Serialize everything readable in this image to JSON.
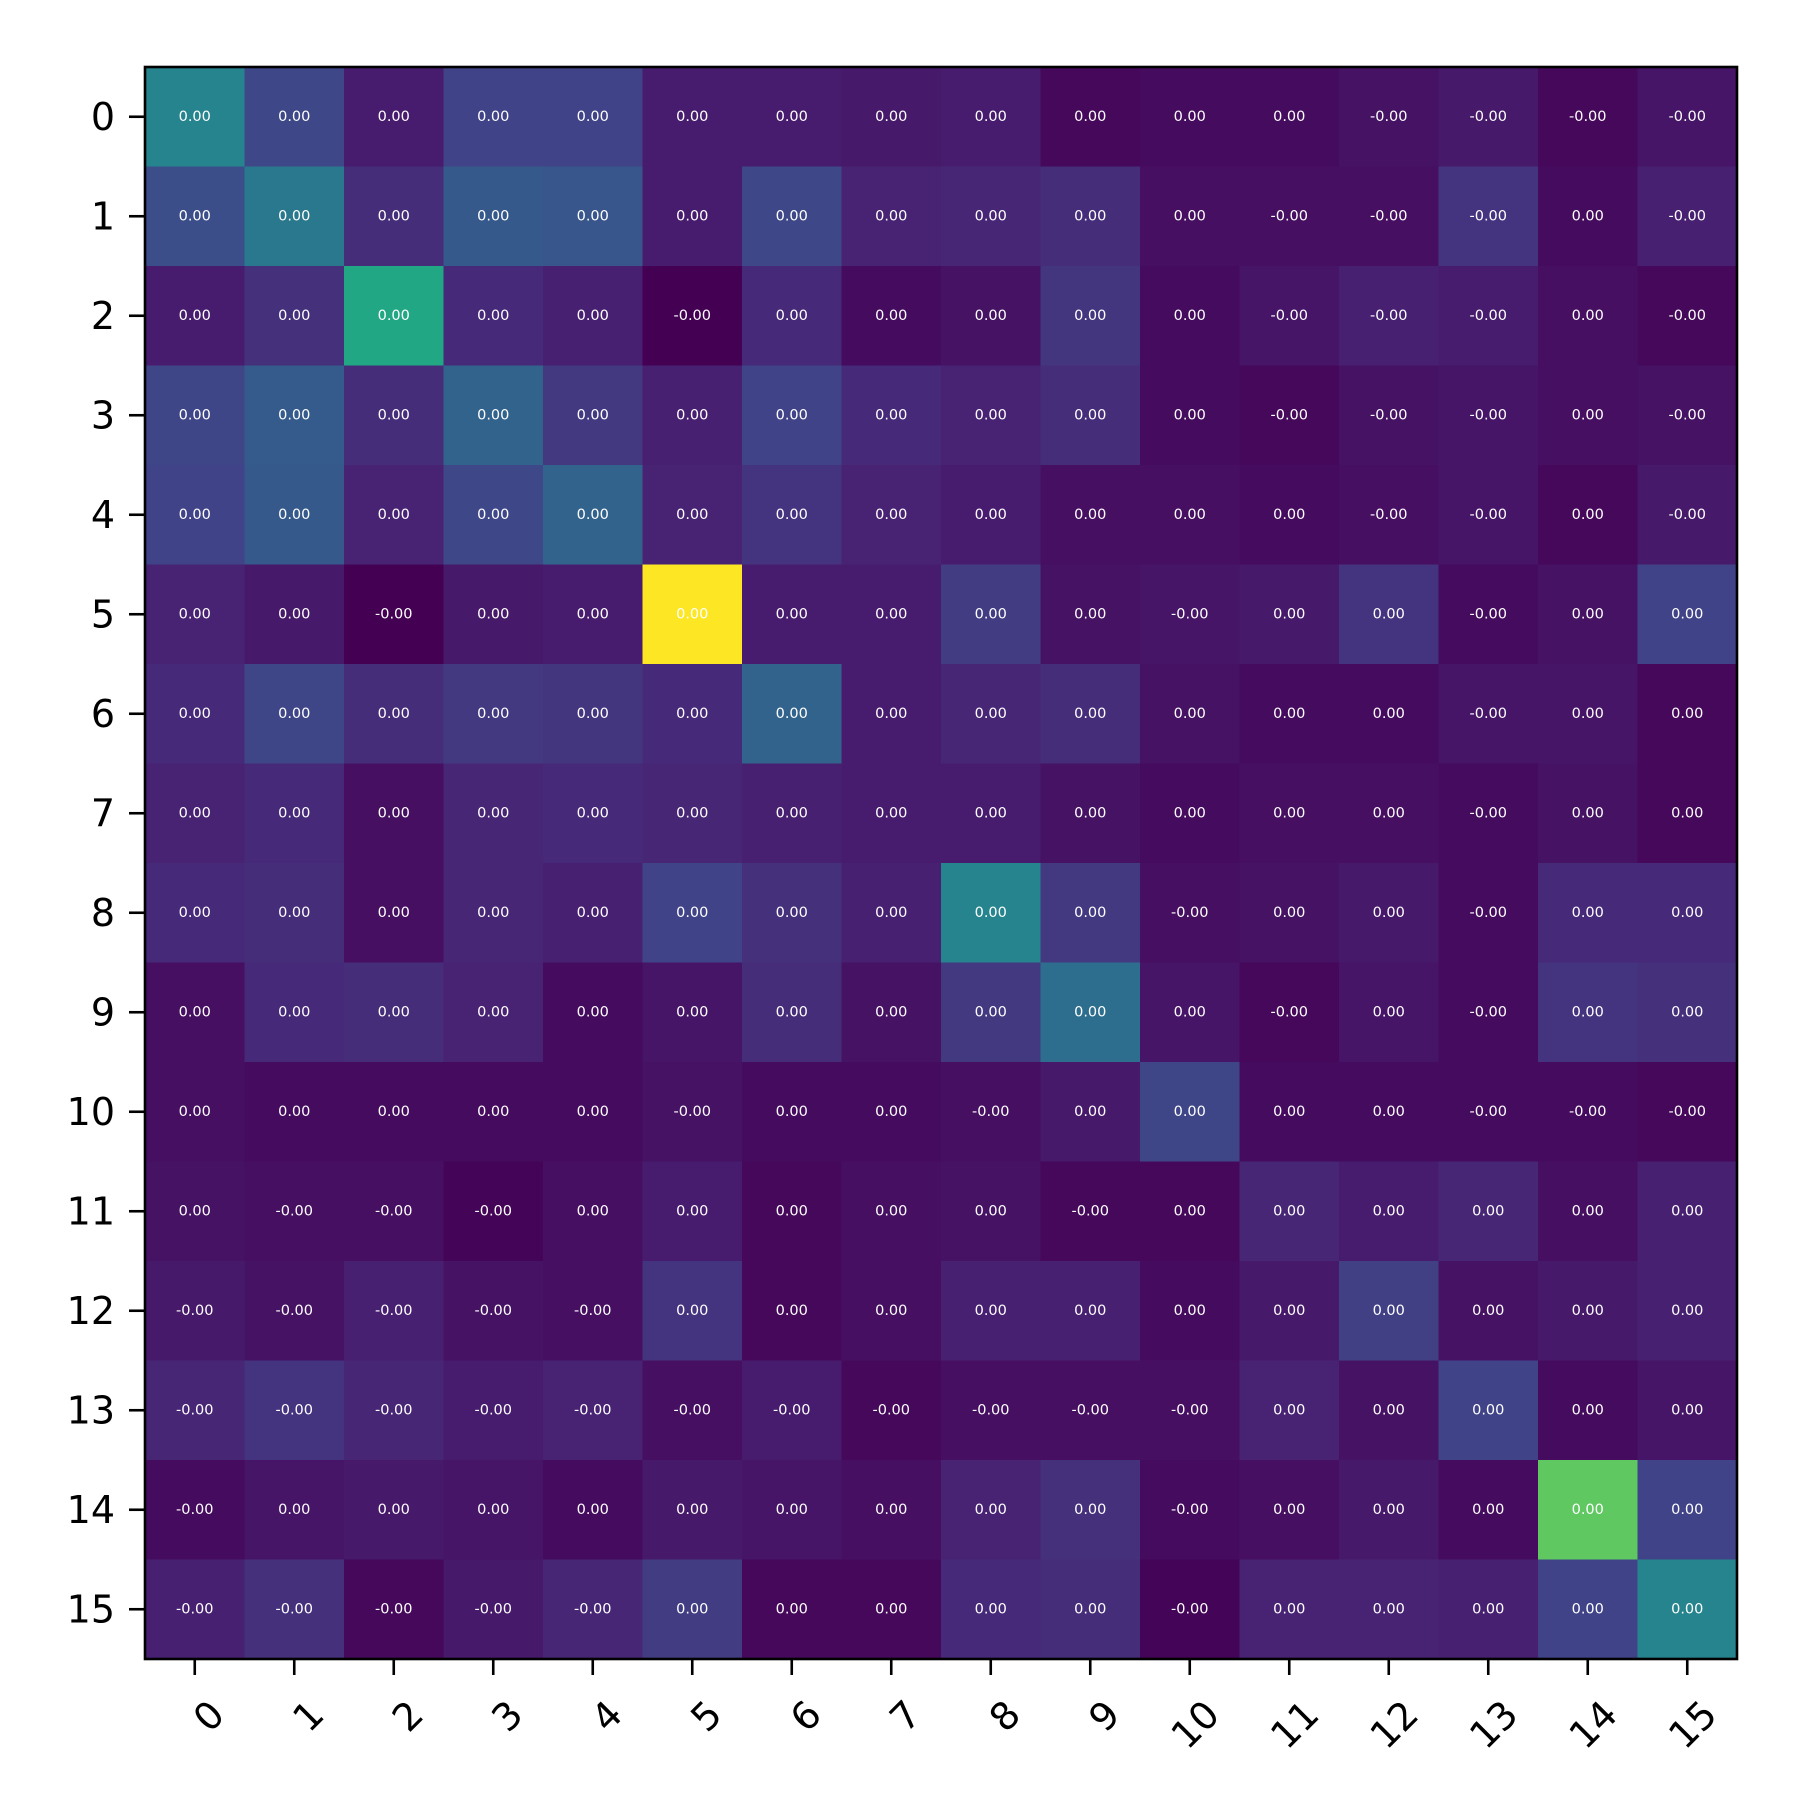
{
  "chart_data": {
    "type": "heatmap",
    "title": "",
    "xlabel": "",
    "ylabel": "",
    "x_tick_labels": [
      "0",
      "1",
      "2",
      "3",
      "4",
      "5",
      "6",
      "7",
      "8",
      "9",
      "10",
      "11",
      "12",
      "13",
      "14",
      "15"
    ],
    "y_tick_labels": [
      "0",
      "1",
      "2",
      "3",
      "4",
      "5",
      "6",
      "7",
      "8",
      "9",
      "10",
      "11",
      "12",
      "13",
      "14",
      "15"
    ],
    "colormap": "viridis",
    "grid": false,
    "legend": "none",
    "intensity": [
      [
        0.45,
        0.22,
        0.08,
        0.2,
        0.2,
        0.08,
        0.08,
        0.07,
        0.08,
        0.02,
        0.03,
        0.03,
        0.05,
        0.07,
        0.02,
        0.06
      ],
      [
        0.24,
        0.4,
        0.13,
        0.28,
        0.27,
        0.08,
        0.22,
        0.1,
        0.11,
        0.13,
        0.04,
        0.04,
        0.04,
        0.15,
        0.03,
        0.09
      ],
      [
        0.08,
        0.14,
        0.6,
        0.12,
        0.09,
        0.0,
        0.12,
        0.03,
        0.05,
        0.16,
        0.03,
        0.06,
        0.09,
        0.08,
        0.04,
        0.02
      ],
      [
        0.21,
        0.29,
        0.13,
        0.32,
        0.17,
        0.09,
        0.2,
        0.12,
        0.1,
        0.13,
        0.03,
        0.02,
        0.05,
        0.06,
        0.04,
        0.05
      ],
      [
        0.2,
        0.28,
        0.1,
        0.22,
        0.32,
        0.1,
        0.15,
        0.1,
        0.08,
        0.04,
        0.04,
        0.03,
        0.04,
        0.06,
        0.02,
        0.07
      ],
      [
        0.1,
        0.07,
        0.0,
        0.07,
        0.08,
        1.0,
        0.08,
        0.08,
        0.18,
        0.05,
        0.06,
        0.07,
        0.15,
        0.03,
        0.05,
        0.2
      ],
      [
        0.12,
        0.21,
        0.13,
        0.17,
        0.16,
        0.12,
        0.32,
        0.08,
        0.11,
        0.13,
        0.05,
        0.03,
        0.03,
        0.06,
        0.06,
        0.02
      ],
      [
        0.1,
        0.12,
        0.04,
        0.11,
        0.12,
        0.11,
        0.09,
        0.08,
        0.08,
        0.05,
        0.03,
        0.04,
        0.04,
        0.03,
        0.05,
        0.02
      ],
      [
        0.12,
        0.13,
        0.04,
        0.11,
        0.09,
        0.2,
        0.14,
        0.09,
        0.45,
        0.17,
        0.04,
        0.05,
        0.07,
        0.03,
        0.12,
        0.12
      ],
      [
        0.04,
        0.12,
        0.13,
        0.1,
        0.03,
        0.06,
        0.13,
        0.05,
        0.17,
        0.36,
        0.06,
        0.02,
        0.06,
        0.03,
        0.15,
        0.14
      ],
      [
        0.04,
        0.03,
        0.03,
        0.03,
        0.03,
        0.05,
        0.03,
        0.03,
        0.04,
        0.07,
        0.21,
        0.03,
        0.03,
        0.03,
        0.03,
        0.02
      ],
      [
        0.05,
        0.04,
        0.04,
        0.01,
        0.04,
        0.08,
        0.02,
        0.04,
        0.05,
        0.02,
        0.02,
        0.11,
        0.08,
        0.11,
        0.04,
        0.09
      ],
      [
        0.07,
        0.05,
        0.09,
        0.05,
        0.04,
        0.15,
        0.02,
        0.04,
        0.09,
        0.09,
        0.03,
        0.07,
        0.19,
        0.05,
        0.07,
        0.09
      ],
      [
        0.11,
        0.15,
        0.11,
        0.08,
        0.1,
        0.04,
        0.08,
        0.02,
        0.04,
        0.04,
        0.04,
        0.1,
        0.05,
        0.2,
        0.03,
        0.06
      ],
      [
        0.03,
        0.06,
        0.07,
        0.06,
        0.03,
        0.07,
        0.06,
        0.04,
        0.1,
        0.14,
        0.03,
        0.04,
        0.07,
        0.03,
        0.75,
        0.2
      ],
      [
        0.09,
        0.14,
        0.02,
        0.07,
        0.11,
        0.18,
        0.02,
        0.02,
        0.12,
        0.13,
        0.01,
        0.1,
        0.1,
        0.09,
        0.2,
        0.45
      ]
    ],
    "annotations": [
      [
        "0.00",
        "0.00",
        "0.00",
        "0.00",
        "0.00",
        "0.00",
        "0.00",
        "0.00",
        "0.00",
        "0.00",
        "0.00",
        "0.00",
        "-0.00",
        "-0.00",
        "-0.00",
        "-0.00"
      ],
      [
        "0.00",
        "0.00",
        "0.00",
        "0.00",
        "0.00",
        "0.00",
        "0.00",
        "0.00",
        "0.00",
        "0.00",
        "0.00",
        "-0.00",
        "-0.00",
        "-0.00",
        "0.00",
        "-0.00"
      ],
      [
        "0.00",
        "0.00",
        "0.00",
        "0.00",
        "0.00",
        "-0.00",
        "0.00",
        "0.00",
        "0.00",
        "0.00",
        "0.00",
        "-0.00",
        "-0.00",
        "-0.00",
        "0.00",
        "-0.00"
      ],
      [
        "0.00",
        "0.00",
        "0.00",
        "0.00",
        "0.00",
        "0.00",
        "0.00",
        "0.00",
        "0.00",
        "0.00",
        "0.00",
        "-0.00",
        "-0.00",
        "-0.00",
        "0.00",
        "-0.00"
      ],
      [
        "0.00",
        "0.00",
        "0.00",
        "0.00",
        "0.00",
        "0.00",
        "0.00",
        "0.00",
        "0.00",
        "0.00",
        "0.00",
        "0.00",
        "-0.00",
        "-0.00",
        "0.00",
        "-0.00"
      ],
      [
        "0.00",
        "0.00",
        "-0.00",
        "0.00",
        "0.00",
        "0.00",
        "0.00",
        "0.00",
        "0.00",
        "0.00",
        "-0.00",
        "0.00",
        "0.00",
        "-0.00",
        "0.00",
        "0.00"
      ],
      [
        "0.00",
        "0.00",
        "0.00",
        "0.00",
        "0.00",
        "0.00",
        "0.00",
        "0.00",
        "0.00",
        "0.00",
        "0.00",
        "0.00",
        "0.00",
        "-0.00",
        "0.00",
        "0.00"
      ],
      [
        "0.00",
        "0.00",
        "0.00",
        "0.00",
        "0.00",
        "0.00",
        "0.00",
        "0.00",
        "0.00",
        "0.00",
        "0.00",
        "0.00",
        "0.00",
        "-0.00",
        "0.00",
        "0.00"
      ],
      [
        "0.00",
        "0.00",
        "0.00",
        "0.00",
        "0.00",
        "0.00",
        "0.00",
        "0.00",
        "0.00",
        "0.00",
        "-0.00",
        "0.00",
        "0.00",
        "-0.00",
        "0.00",
        "0.00"
      ],
      [
        "0.00",
        "0.00",
        "0.00",
        "0.00",
        "0.00",
        "0.00",
        "0.00",
        "0.00",
        "0.00",
        "0.00",
        "0.00",
        "-0.00",
        "0.00",
        "-0.00",
        "0.00",
        "0.00"
      ],
      [
        "0.00",
        "0.00",
        "0.00",
        "0.00",
        "0.00",
        "-0.00",
        "0.00",
        "0.00",
        "-0.00",
        "0.00",
        "0.00",
        "0.00",
        "0.00",
        "-0.00",
        "-0.00",
        "-0.00"
      ],
      [
        "0.00",
        "-0.00",
        "-0.00",
        "-0.00",
        "0.00",
        "0.00",
        "0.00",
        "0.00",
        "0.00",
        "-0.00",
        "0.00",
        "0.00",
        "0.00",
        "0.00",
        "0.00",
        "0.00"
      ],
      [
        "-0.00",
        "-0.00",
        "-0.00",
        "-0.00",
        "-0.00",
        "0.00",
        "0.00",
        "0.00",
        "0.00",
        "0.00",
        "0.00",
        "0.00",
        "0.00",
        "0.00",
        "0.00",
        "0.00"
      ],
      [
        "-0.00",
        "-0.00",
        "-0.00",
        "-0.00",
        "-0.00",
        "-0.00",
        "-0.00",
        "-0.00",
        "-0.00",
        "-0.00",
        "-0.00",
        "0.00",
        "0.00",
        "0.00",
        "0.00",
        "0.00"
      ],
      [
        "-0.00",
        "0.00",
        "0.00",
        "0.00",
        "0.00",
        "0.00",
        "0.00",
        "0.00",
        "0.00",
        "0.00",
        "-0.00",
        "0.00",
        "0.00",
        "0.00",
        "0.00",
        "0.00"
      ],
      [
        "-0.00",
        "-0.00",
        "-0.00",
        "-0.00",
        "-0.00",
        "0.00",
        "0.00",
        "0.00",
        "0.00",
        "0.00",
        "-0.00",
        "0.00",
        "0.00",
        "0.00",
        "0.00",
        "0.00"
      ]
    ]
  }
}
